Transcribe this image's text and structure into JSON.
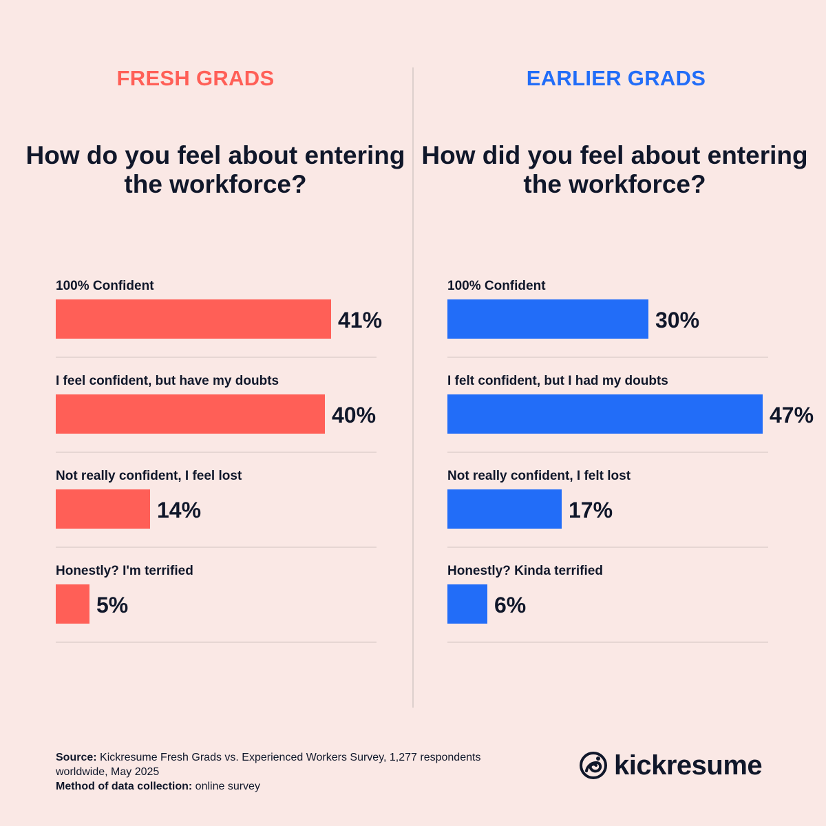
{
  "colors": {
    "background": "#fae8e5",
    "fresh": "#ff5f57",
    "earlier": "#226df8",
    "text": "#10172a"
  },
  "chart_data": [
    {
      "type": "bar",
      "orientation": "horizontal",
      "title": "FRESH GRADS",
      "subtitle": "How do you feel about entering the workforce?",
      "categories": [
        "100% Confident",
        "I feel confident, but have my doubts",
        "Not really confident, I feel lost",
        "Honestly? I'm terrified"
      ],
      "values": [
        41,
        40,
        14,
        5
      ],
      "value_labels": [
        "41%",
        "40%",
        "14%",
        "5%"
      ],
      "color": "#ff5f57",
      "xlim": [
        0,
        47
      ]
    },
    {
      "type": "bar",
      "orientation": "horizontal",
      "title": "EARLIER GRADS",
      "subtitle": "How did you feel about entering the workforce?",
      "categories": [
        "100% Confident",
        "I felt confident, but I had my doubts",
        "Not really confident, I felt lost",
        "Honestly? Kinda terrified"
      ],
      "values": [
        30,
        47,
        17,
        6
      ],
      "value_labels": [
        "30%",
        "47%",
        "17%",
        "6%"
      ],
      "color": "#226df8",
      "xlim": [
        0,
        47
      ]
    }
  ],
  "footer": {
    "source_label": "Source:",
    "source_text": " Kickresume Fresh Grads vs. Experienced Workers Survey, 1,277 respondents worldwide, May 2025",
    "method_label": "Method of data collection:",
    "method_text": " online survey"
  },
  "brand": {
    "name": "kickresume",
    "icon": "kickresume-logo-icon"
  }
}
